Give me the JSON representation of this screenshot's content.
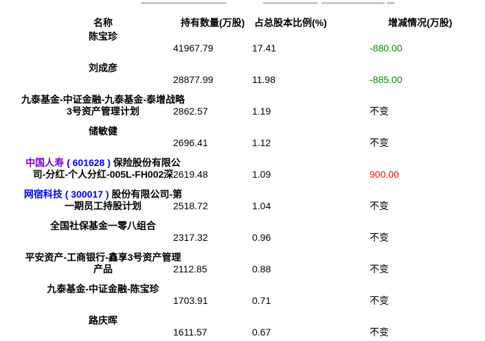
{
  "header": {
    "name": "名称",
    "qty": "持有数量(万股)",
    "pct": "占总股本比例(%)",
    "chg": "增减情况(万股)"
  },
  "rows": [
    {
      "name": [
        {
          "t": "陈宝珍",
          "c": "plain"
        }
      ],
      "qty": "41967.79",
      "pct": "17.41",
      "chg": "-880.00",
      "chgColor": "green"
    },
    {
      "name": [
        {
          "t": "刘成彦",
          "c": "plain"
        }
      ],
      "qty": "28877.99",
      "pct": "11.98",
      "chg": "-885.00",
      "chgColor": "green"
    },
    {
      "name": [
        {
          "t": "九泰基金-中证金融-九泰基金-泰增战略3号资产管理计划",
          "c": "plain"
        }
      ],
      "qty": "2862.57",
      "pct": "1.19",
      "chg": "不变",
      "chgColor": "black"
    },
    {
      "name": [
        {
          "t": "储敏健",
          "c": "plain"
        }
      ],
      "qty": "2696.41",
      "pct": "1.12",
      "chg": "不变",
      "chgColor": "black"
    },
    {
      "name": [
        {
          "t": "中国人寿",
          "c": "purple"
        },
        {
          "t": " ( 601628 ) ",
          "c": "blue"
        },
        {
          "t": "保险股份有限公司-分红-个人分红-005L-FH002深",
          "c": "plain"
        }
      ],
      "qty": "2619.48",
      "pct": "1.09",
      "chg": "900.00",
      "chgColor": "red"
    },
    {
      "name": [
        {
          "t": "网宿科技",
          "c": "blue"
        },
        {
          "t": " ( 300017 ) ",
          "c": "blue"
        },
        {
          "t": "股份有限公司-第一期员工持股计划",
          "c": "plain"
        }
      ],
      "qty": "2518.72",
      "pct": "1.04",
      "chg": "不变",
      "chgColor": "black"
    },
    {
      "name": [
        {
          "t": "全国社保基金一零八组合",
          "c": "plain"
        }
      ],
      "qty": "2317.32",
      "pct": "0.96",
      "chg": "不变",
      "chgColor": "black"
    },
    {
      "name": [
        {
          "t": "平安资产-工商银行-鑫享3号资产管理产品",
          "c": "plain"
        }
      ],
      "qty": "2112.85",
      "pct": "0.88",
      "chg": "不变",
      "chgColor": "black"
    },
    {
      "name": [
        {
          "t": "九泰基金-中证金融-陈宝珍",
          "c": "plain"
        }
      ],
      "qty": "1703.91",
      "pct": "0.71",
      "chg": "不变",
      "chgColor": "black"
    },
    {
      "name": [
        {
          "t": "路庆晖",
          "c": "plain"
        }
      ],
      "qty": "1611.57",
      "pct": "0.67",
      "chg": "不变",
      "chgColor": "black"
    }
  ],
  "colors": {
    "green": "#008800",
    "red": "#ff0000",
    "blue": "#0000ff",
    "purple": "#7700cc",
    "plain": "#000000",
    "black": "#000000"
  }
}
